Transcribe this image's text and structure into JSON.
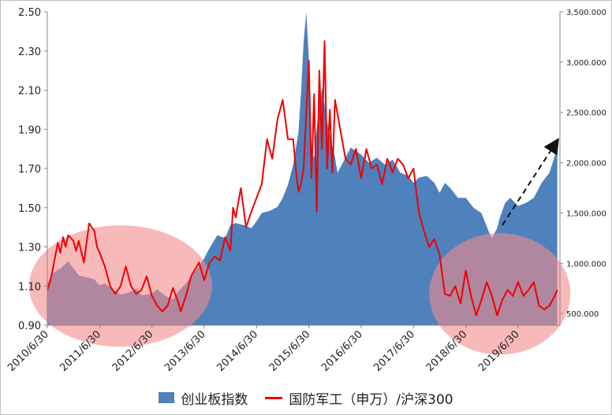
{
  "colors": {
    "area": "#4f81bd",
    "line": "#ee0000",
    "ellipse": "#f48a8a",
    "arrow": "#111111",
    "axis": "#888888",
    "text": "#222222"
  },
  "legend": {
    "area_label": "创业板指数",
    "line_label": "国防军工（申万）/沪深300"
  },
  "chart_data": {
    "type": "area+line",
    "title": "",
    "xlabel": "",
    "y_left": {
      "ylim": [
        0.9,
        2.5
      ],
      "ticks": [
        "0.90",
        "1.10",
        "1.30",
        "1.50",
        "1.70",
        "1.90",
        "2.10",
        "2.30",
        "2.50"
      ]
    },
    "y_right": {
      "ylim": [
        384,
        3500
      ],
      "ticks": [
        "500.000",
        "1,000.000",
        "1,500.000",
        "2,000.000",
        "2,500.000",
        "3,000.000",
        "3,500.000"
      ]
    },
    "x_ticks": [
      "2010/6/30",
      "2011/6/30",
      "2012/6/30",
      "2013/6/30",
      "2014/6/30",
      "2015/6/30",
      "2016/6/30",
      "2017/6/30",
      "2018/6/30",
      "2019/6/30"
    ],
    "x_range": [
      2010.5,
      2020.3
    ],
    "gridlines": false,
    "legend_position": "bottom",
    "series": [
      {
        "name": "创业板指数",
        "axis": "right",
        "kind": "area",
        "x": [
          2010.5,
          2010.6,
          2010.75,
          2010.9,
          2011.0,
          2011.1,
          2011.25,
          2011.4,
          2011.5,
          2011.6,
          2011.75,
          2011.9,
          2012.0,
          2012.1,
          2012.2,
          2012.3,
          2012.5,
          2012.6,
          2012.75,
          2012.9,
          2013.0,
          2013.15,
          2013.3,
          2013.5,
          2013.6,
          2013.75,
          2013.9,
          2014.0,
          2014.1,
          2014.25,
          2014.4,
          2014.5,
          2014.6,
          2014.75,
          2014.9,
          2015.0,
          2015.1,
          2015.2,
          2015.3,
          2015.35,
          2015.4,
          2015.45,
          2015.5,
          2015.55,
          2015.6,
          2015.65,
          2015.75,
          2015.85,
          2015.95,
          2016.0,
          2016.05,
          2016.15,
          2016.3,
          2016.5,
          2016.65,
          2016.8,
          2016.95,
          2017.1,
          2017.25,
          2017.4,
          2017.5,
          2017.6,
          2017.75,
          2017.9,
          2018.0,
          2018.1,
          2018.2,
          2018.35,
          2018.5,
          2018.65,
          2018.8,
          2018.95,
          2019.0,
          2019.1,
          2019.15,
          2019.25,
          2019.35,
          2019.5,
          2019.65,
          2019.8,
          2019.95,
          2020.1,
          2020.25
        ],
        "values": [
          800,
          900,
          950,
          1020,
          950,
          880,
          860,
          840,
          780,
          800,
          740,
          690,
          700,
          720,
          750,
          680,
          700,
          740,
          680,
          640,
          720,
          800,
          900,
          1050,
          1150,
          1280,
          1250,
          1380,
          1400,
          1380,
          1350,
          1420,
          1500,
          1520,
          1560,
          1650,
          1780,
          1980,
          2300,
          2700,
          3200,
          3500,
          3050,
          2100,
          2050,
          2350,
          2750,
          2400,
          2150,
          2050,
          1900,
          2000,
          2150,
          2080,
          2000,
          2050,
          1980,
          2030,
          1900,
          1870,
          1800,
          1850,
          1870,
          1800,
          1700,
          1800,
          1750,
          1650,
          1650,
          1550,
          1500,
          1300,
          1250,
          1350,
          1450,
          1600,
          1650,
          1570,
          1600,
          1650,
          1800,
          1900,
          2150
        ]
      },
      {
        "name": "国防军工（申万）/沪深300",
        "axis": "left",
        "kind": "line",
        "x": [
          2010.5,
          2010.55,
          2010.6,
          2010.65,
          2010.7,
          2010.75,
          2010.8,
          2010.85,
          2010.9,
          2011.0,
          2011.05,
          2011.1,
          2011.2,
          2011.3,
          2011.4,
          2011.45,
          2011.5,
          2011.6,
          2011.7,
          2011.8,
          2011.9,
          2012.0,
          2012.1,
          2012.2,
          2012.3,
          2012.4,
          2012.5,
          2012.6,
          2012.7,
          2012.8,
          2012.9,
          2013.0,
          2013.05,
          2013.15,
          2013.25,
          2013.4,
          2013.5,
          2013.6,
          2013.7,
          2013.8,
          2013.9,
          2014.0,
          2014.05,
          2014.1,
          2014.2,
          2014.3,
          2014.4,
          2014.5,
          2014.6,
          2014.7,
          2014.8,
          2014.9,
          2015.0,
          2015.1,
          2015.2,
          2015.25,
          2015.3,
          2015.35,
          2015.4,
          2015.45,
          2015.5,
          2015.55,
          2015.6,
          2015.65,
          2015.7,
          2015.75,
          2015.8,
          2015.85,
          2015.9,
          2015.95,
          2016.0,
          2016.1,
          2016.2,
          2016.3,
          2016.4,
          2016.5,
          2016.6,
          2016.7,
          2016.8,
          2016.9,
          2017.0,
          2017.1,
          2017.2,
          2017.3,
          2017.4,
          2017.5,
          2017.6,
          2017.7,
          2017.8,
          2017.9,
          2018.0,
          2018.1,
          2018.2,
          2018.3,
          2018.4,
          2018.5,
          2018.6,
          2018.7,
          2018.8,
          2018.9,
          2019.0,
          2019.1,
          2019.2,
          2019.3,
          2019.4,
          2019.5,
          2019.6,
          2019.7,
          2019.8,
          2019.9,
          2020.0,
          2020.1,
          2020.2,
          2020.25
        ],
        "values": [
          1.08,
          1.12,
          1.18,
          1.25,
          1.32,
          1.27,
          1.35,
          1.3,
          1.36,
          1.33,
          1.28,
          1.33,
          1.22,
          1.42,
          1.38,
          1.3,
          1.27,
          1.2,
          1.1,
          1.06,
          1.1,
          1.2,
          1.1,
          1.06,
          1.08,
          1.15,
          1.05,
          1.0,
          0.97,
          1.0,
          1.09,
          1.02,
          0.97,
          1.05,
          1.15,
          1.22,
          1.13,
          1.22,
          1.25,
          1.23,
          1.35,
          1.28,
          1.5,
          1.45,
          1.6,
          1.4,
          1.48,
          1.55,
          1.62,
          1.85,
          1.75,
          1.95,
          2.05,
          1.85,
          1.85,
          1.7,
          1.58,
          1.62,
          1.7,
          1.98,
          2.25,
          1.65,
          2.08,
          1.48,
          2.2,
          1.8,
          2.35,
          1.7,
          2.0,
          1.68,
          2.05,
          1.9,
          1.75,
          1.72,
          1.8,
          1.65,
          1.8,
          1.7,
          1.72,
          1.62,
          1.75,
          1.68,
          1.75,
          1.72,
          1.65,
          1.7,
          1.48,
          1.38,
          1.3,
          1.34,
          1.26,
          1.06,
          1.05,
          1.1,
          1.01,
          1.18,
          1.05,
          0.95,
          1.03,
          1.12,
          1.05,
          0.95,
          1.03,
          1.08,
          1.05,
          1.12,
          1.05,
          1.08,
          1.12,
          1.0,
          0.98,
          1.0,
          1.05,
          1.08
        ]
      }
    ],
    "annotations": [
      {
        "kind": "ellipse",
        "axis": "left",
        "cx": 2011.9,
        "cy": 1.1,
        "rx": 1.75,
        "ry": 0.31
      },
      {
        "kind": "ellipse",
        "axis": "left",
        "cx": 2019.15,
        "cy": 1.06,
        "rx": 1.35,
        "ry": 0.31
      },
      {
        "kind": "dashed-arrow",
        "axis": "right",
        "from": [
          2019.2,
          1380
        ],
        "to": [
          2020.25,
          2220
        ]
      }
    ]
  }
}
